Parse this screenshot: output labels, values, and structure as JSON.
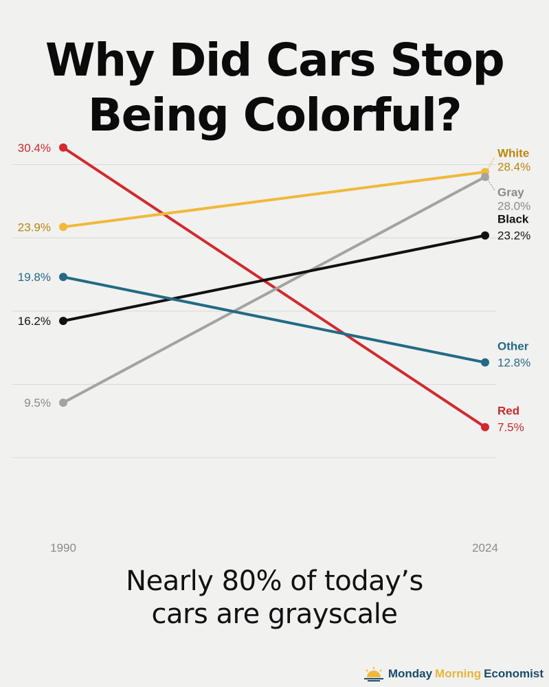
{
  "title": {
    "line1": "Why Did Cars Stop",
    "line2": "Being Colorful?"
  },
  "subtitle": {
    "line1": "Nearly 80% of today’s",
    "line2": "cars are grayscale"
  },
  "brand": {
    "word1": "Monday",
    "word2": "Morning",
    "word3": "Economist",
    "icon": "sunrise-icon"
  },
  "chart_data": {
    "type": "line",
    "x": [
      "1990",
      "2024"
    ],
    "ylim": [
      0,
      33
    ],
    "grid": true,
    "legend": "direct labels at line ends",
    "series": [
      {
        "name": "Red",
        "values": [
          30.4,
          7.5
        ],
        "labels": [
          "30.4%",
          "7.5%"
        ],
        "color": "#d22a2e",
        "text_color": "#c82a2a"
      },
      {
        "name": "White",
        "values": [
          23.9,
          28.4
        ],
        "labels": [
          "23.9%",
          "28.4%"
        ],
        "color": "#f0b93a",
        "text_color": "#b8860b"
      },
      {
        "name": "Gray",
        "values": [
          9.5,
          28.0
        ],
        "labels": [
          "9.5%",
          "28.0%"
        ],
        "color": "#a3a3a3",
        "text_color": "#8a8a8a"
      },
      {
        "name": "Black",
        "values": [
          16.2,
          23.2
        ],
        "labels": [
          "16.2%",
          "23.2%"
        ],
        "color": "#111111",
        "text_color": "#111111"
      },
      {
        "name": "Other",
        "values": [
          19.8,
          12.8
        ],
        "labels": [
          "19.8%",
          "12.8%"
        ],
        "color": "#236a85",
        "text_color": "#236a85"
      }
    ]
  }
}
